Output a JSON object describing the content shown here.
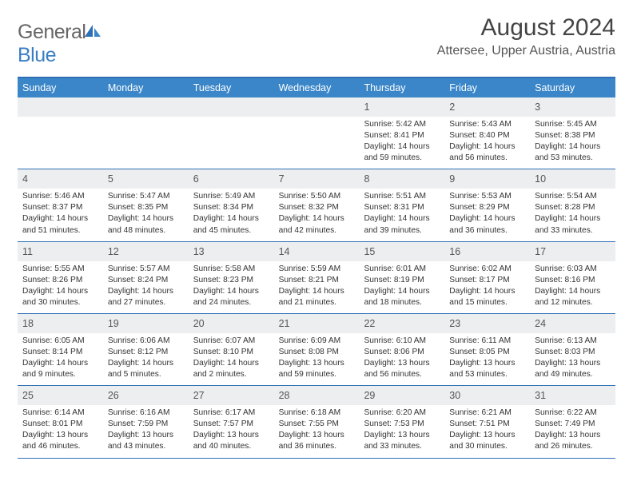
{
  "logo": {
    "text1": "General",
    "text2": "Blue"
  },
  "title": "August 2024",
  "subtitle": "Attersee, Upper Austria, Austria",
  "colors": {
    "header_bg": "#3a86c8",
    "border": "#2e6fb5",
    "daynum_bg": "#eceef0",
    "text_dark": "#333333",
    "text_mid": "#555555"
  },
  "dayheaders": [
    "Sunday",
    "Monday",
    "Tuesday",
    "Wednesday",
    "Thursday",
    "Friday",
    "Saturday"
  ],
  "weeks": [
    [
      {
        "n": "",
        "sunrise": "",
        "sunset": "",
        "daylight": ""
      },
      {
        "n": "",
        "sunrise": "",
        "sunset": "",
        "daylight": ""
      },
      {
        "n": "",
        "sunrise": "",
        "sunset": "",
        "daylight": ""
      },
      {
        "n": "",
        "sunrise": "",
        "sunset": "",
        "daylight": ""
      },
      {
        "n": "1",
        "sunrise": "Sunrise: 5:42 AM",
        "sunset": "Sunset: 8:41 PM",
        "daylight": "Daylight: 14 hours and 59 minutes."
      },
      {
        "n": "2",
        "sunrise": "Sunrise: 5:43 AM",
        "sunset": "Sunset: 8:40 PM",
        "daylight": "Daylight: 14 hours and 56 minutes."
      },
      {
        "n": "3",
        "sunrise": "Sunrise: 5:45 AM",
        "sunset": "Sunset: 8:38 PM",
        "daylight": "Daylight: 14 hours and 53 minutes."
      }
    ],
    [
      {
        "n": "4",
        "sunrise": "Sunrise: 5:46 AM",
        "sunset": "Sunset: 8:37 PM",
        "daylight": "Daylight: 14 hours and 51 minutes."
      },
      {
        "n": "5",
        "sunrise": "Sunrise: 5:47 AM",
        "sunset": "Sunset: 8:35 PM",
        "daylight": "Daylight: 14 hours and 48 minutes."
      },
      {
        "n": "6",
        "sunrise": "Sunrise: 5:49 AM",
        "sunset": "Sunset: 8:34 PM",
        "daylight": "Daylight: 14 hours and 45 minutes."
      },
      {
        "n": "7",
        "sunrise": "Sunrise: 5:50 AM",
        "sunset": "Sunset: 8:32 PM",
        "daylight": "Daylight: 14 hours and 42 minutes."
      },
      {
        "n": "8",
        "sunrise": "Sunrise: 5:51 AM",
        "sunset": "Sunset: 8:31 PM",
        "daylight": "Daylight: 14 hours and 39 minutes."
      },
      {
        "n": "9",
        "sunrise": "Sunrise: 5:53 AM",
        "sunset": "Sunset: 8:29 PM",
        "daylight": "Daylight: 14 hours and 36 minutes."
      },
      {
        "n": "10",
        "sunrise": "Sunrise: 5:54 AM",
        "sunset": "Sunset: 8:28 PM",
        "daylight": "Daylight: 14 hours and 33 minutes."
      }
    ],
    [
      {
        "n": "11",
        "sunrise": "Sunrise: 5:55 AM",
        "sunset": "Sunset: 8:26 PM",
        "daylight": "Daylight: 14 hours and 30 minutes."
      },
      {
        "n": "12",
        "sunrise": "Sunrise: 5:57 AM",
        "sunset": "Sunset: 8:24 PM",
        "daylight": "Daylight: 14 hours and 27 minutes."
      },
      {
        "n": "13",
        "sunrise": "Sunrise: 5:58 AM",
        "sunset": "Sunset: 8:23 PM",
        "daylight": "Daylight: 14 hours and 24 minutes."
      },
      {
        "n": "14",
        "sunrise": "Sunrise: 5:59 AM",
        "sunset": "Sunset: 8:21 PM",
        "daylight": "Daylight: 14 hours and 21 minutes."
      },
      {
        "n": "15",
        "sunrise": "Sunrise: 6:01 AM",
        "sunset": "Sunset: 8:19 PM",
        "daylight": "Daylight: 14 hours and 18 minutes."
      },
      {
        "n": "16",
        "sunrise": "Sunrise: 6:02 AM",
        "sunset": "Sunset: 8:17 PM",
        "daylight": "Daylight: 14 hours and 15 minutes."
      },
      {
        "n": "17",
        "sunrise": "Sunrise: 6:03 AM",
        "sunset": "Sunset: 8:16 PM",
        "daylight": "Daylight: 14 hours and 12 minutes."
      }
    ],
    [
      {
        "n": "18",
        "sunrise": "Sunrise: 6:05 AM",
        "sunset": "Sunset: 8:14 PM",
        "daylight": "Daylight: 14 hours and 9 minutes."
      },
      {
        "n": "19",
        "sunrise": "Sunrise: 6:06 AM",
        "sunset": "Sunset: 8:12 PM",
        "daylight": "Daylight: 14 hours and 5 minutes."
      },
      {
        "n": "20",
        "sunrise": "Sunrise: 6:07 AM",
        "sunset": "Sunset: 8:10 PM",
        "daylight": "Daylight: 14 hours and 2 minutes."
      },
      {
        "n": "21",
        "sunrise": "Sunrise: 6:09 AM",
        "sunset": "Sunset: 8:08 PM",
        "daylight": "Daylight: 13 hours and 59 minutes."
      },
      {
        "n": "22",
        "sunrise": "Sunrise: 6:10 AM",
        "sunset": "Sunset: 8:06 PM",
        "daylight": "Daylight: 13 hours and 56 minutes."
      },
      {
        "n": "23",
        "sunrise": "Sunrise: 6:11 AM",
        "sunset": "Sunset: 8:05 PM",
        "daylight": "Daylight: 13 hours and 53 minutes."
      },
      {
        "n": "24",
        "sunrise": "Sunrise: 6:13 AM",
        "sunset": "Sunset: 8:03 PM",
        "daylight": "Daylight: 13 hours and 49 minutes."
      }
    ],
    [
      {
        "n": "25",
        "sunrise": "Sunrise: 6:14 AM",
        "sunset": "Sunset: 8:01 PM",
        "daylight": "Daylight: 13 hours and 46 minutes."
      },
      {
        "n": "26",
        "sunrise": "Sunrise: 6:16 AM",
        "sunset": "Sunset: 7:59 PM",
        "daylight": "Daylight: 13 hours and 43 minutes."
      },
      {
        "n": "27",
        "sunrise": "Sunrise: 6:17 AM",
        "sunset": "Sunset: 7:57 PM",
        "daylight": "Daylight: 13 hours and 40 minutes."
      },
      {
        "n": "28",
        "sunrise": "Sunrise: 6:18 AM",
        "sunset": "Sunset: 7:55 PM",
        "daylight": "Daylight: 13 hours and 36 minutes."
      },
      {
        "n": "29",
        "sunrise": "Sunrise: 6:20 AM",
        "sunset": "Sunset: 7:53 PM",
        "daylight": "Daylight: 13 hours and 33 minutes."
      },
      {
        "n": "30",
        "sunrise": "Sunrise: 6:21 AM",
        "sunset": "Sunset: 7:51 PM",
        "daylight": "Daylight: 13 hours and 30 minutes."
      },
      {
        "n": "31",
        "sunrise": "Sunrise: 6:22 AM",
        "sunset": "Sunset: 7:49 PM",
        "daylight": "Daylight: 13 hours and 26 minutes."
      }
    ]
  ]
}
